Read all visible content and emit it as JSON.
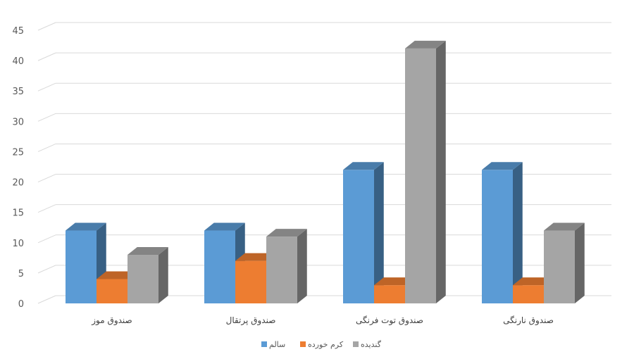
{
  "chart_data": {
    "type": "bar",
    "style": "3d-clustered-column",
    "title": "",
    "xlabel": "",
    "ylabel": "",
    "ylim": [
      0,
      45
    ],
    "yticks": [
      0,
      5,
      10,
      15,
      20,
      25,
      30,
      35,
      40,
      45
    ],
    "grid": true,
    "legend_position": "bottom",
    "categories": [
      "صندوق موز",
      "صندوق پرتقال",
      "صندوق توت فرنگی",
      "صندوق نارنگی"
    ],
    "series": [
      {
        "name": "سالم",
        "color": "#5b9bd5",
        "values": [
          12,
          12,
          22,
          22
        ]
      },
      {
        "name": "کرم خورده",
        "color": "#ed7d31",
        "values": [
          4,
          7,
          3,
          3
        ]
      },
      {
        "name": "گندیده",
        "color": "#a5a5a5",
        "values": [
          8,
          11,
          42,
          12
        ]
      }
    ]
  }
}
